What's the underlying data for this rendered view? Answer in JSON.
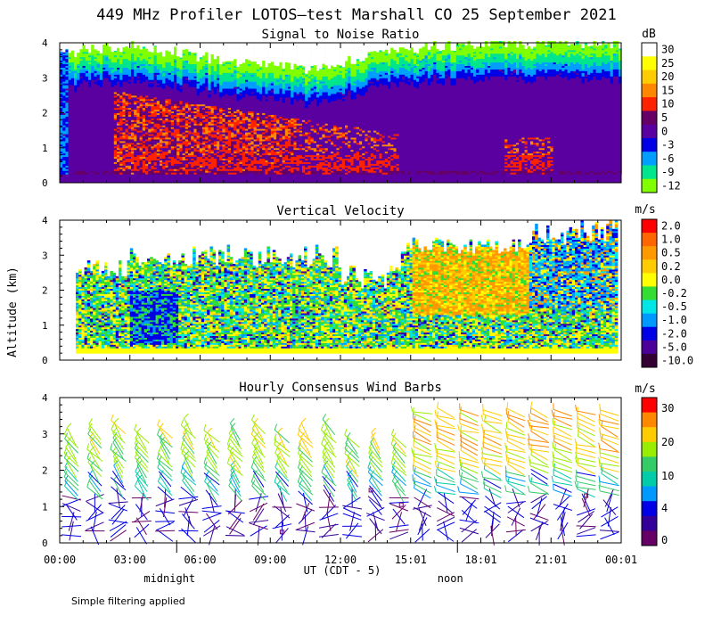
{
  "figure": {
    "title": "449 MHz Profiler LOTOS–test Marshall CO 25 September 2021",
    "ylabel": "Altitude (km)",
    "xlabel": "UT  (CDT - 5)",
    "time_ticks": [
      "00:00",
      "03:00",
      "06:00",
      "09:00",
      "12:00",
      "15:01",
      "18:01",
      "21:01",
      "00:01"
    ],
    "local_markers": [
      {
        "label": "midnight",
        "hour_ut": 5
      },
      {
        "label": "noon",
        "hour_ut": 17
      }
    ],
    "footnote": "Simple filtering applied"
  },
  "chart_data": [
    {
      "type": "heatmap",
      "id": "snr",
      "title": "Signal to Noise Ratio",
      "units": "dB",
      "x_hours_range": [
        0,
        24
      ],
      "ylim": [
        0,
        4
      ],
      "yticks": [
        "0",
        "1",
        "2",
        "3",
        "4"
      ],
      "colorbar": {
        "labels": [
          "30",
          "25",
          "20",
          "15",
          "10",
          "5",
          "0",
          "-3",
          "-6",
          "-9",
          "-12"
        ],
        "colors": [
          "#ffffff",
          "#ffff00",
          "#ffcc00",
          "#ff8800",
          "#ff2200",
          "#660066",
          "#5a00a0",
          "#0000e6",
          "#009fff",
          "#00e68c",
          "#80ff00"
        ]
      },
      "band_tops_km": {
        "hours": [
          0,
          1,
          2,
          3,
          4,
          5,
          6,
          7,
          8,
          9,
          10,
          11,
          12,
          13,
          14,
          15,
          16,
          17,
          18,
          19,
          20,
          21,
          22,
          23,
          24
        ],
        "tops": [
          3.7,
          3.8,
          3.9,
          3.9,
          3.8,
          3.7,
          3.6,
          3.5,
          3.4,
          3.3,
          3.3,
          3.2,
          3.4,
          3.6,
          3.7,
          3.8,
          3.9,
          3.9,
          4.0,
          4.0,
          4.0,
          4.0,
          4.0,
          4.0,
          4.0
        ]
      }
    },
    {
      "type": "heatmap",
      "id": "vertical_velocity",
      "title": "Vertical Velocity",
      "units": "m/s",
      "x_hours_range": [
        0,
        24
      ],
      "ylim": [
        0,
        4
      ],
      "yticks": [
        "0",
        "1",
        "2",
        "3",
        "4"
      ],
      "colorbar": {
        "labels": [
          "2.0",
          "1.0",
          "0.5",
          "0.2",
          "0.0",
          "-0.2",
          "-0.5",
          "-1.0",
          "-2.0",
          "-5.0",
          "-10.0"
        ],
        "colors": [
          "#ff0000",
          "#ff6600",
          "#ff9900",
          "#ffcc00",
          "#ffff00",
          "#33dd33",
          "#00e6e6",
          "#0099ff",
          "#0000e6",
          "#4b0099",
          "#330033"
        ]
      }
    },
    {
      "type": "scatter",
      "id": "wind_barbs",
      "title": "Hourly Consensus Wind Barbs",
      "units": "m/s",
      "x_hours_range": [
        0,
        24
      ],
      "ylim": [
        0,
        4
      ],
      "yticks": [
        "0",
        "1",
        "2",
        "3",
        "4"
      ],
      "colorbar": {
        "labels": [
          "30",
          "20",
          "10",
          "4",
          "0"
        ],
        "colors": [
          "#ff0000",
          "#ff8800",
          "#ffcc00",
          "#99ee00",
          "#33cc66",
          "#00ccaa",
          "#0099ff",
          "#0000e6",
          "#330099",
          "#660066"
        ]
      },
      "speed_profile_note": "low level winds light (0-4 m/s), upper winds 10-20 m/s, strongest aloft in afternoon"
    }
  ]
}
